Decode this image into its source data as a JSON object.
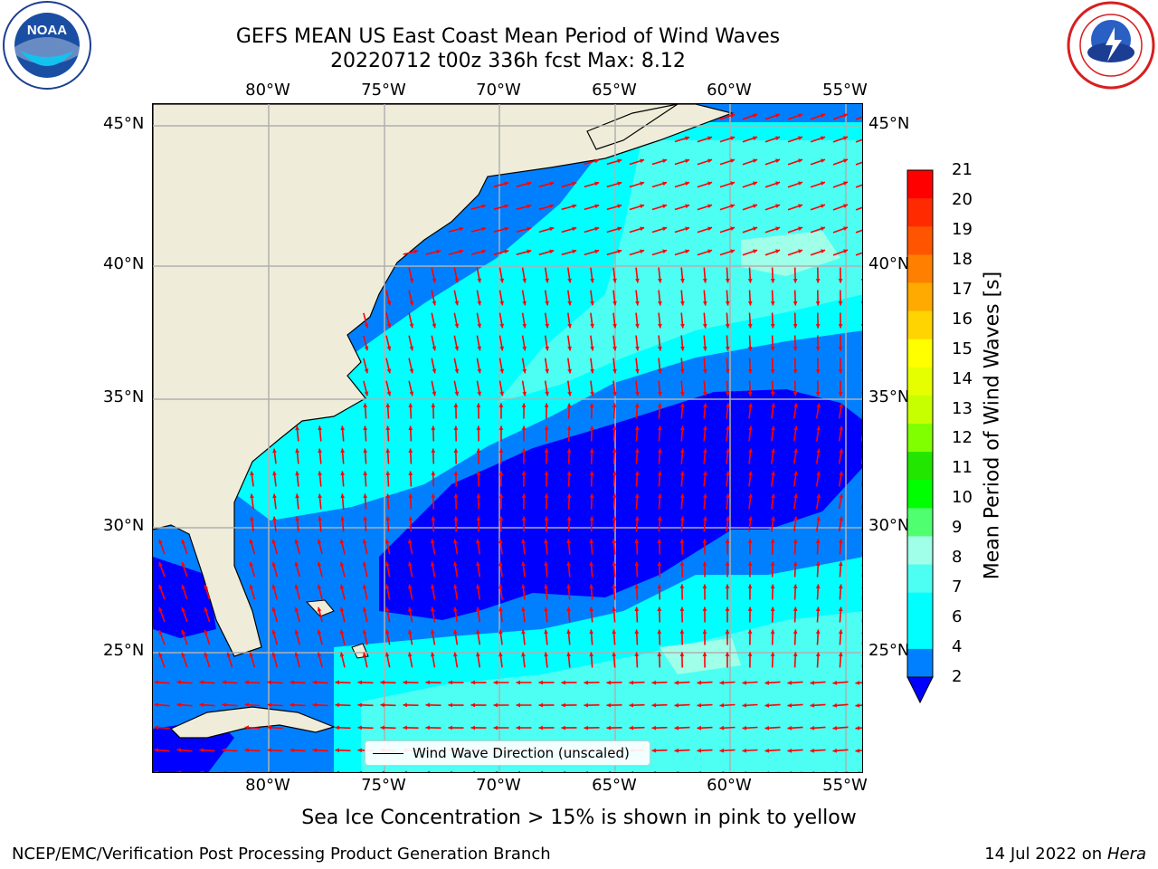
{
  "title": {
    "line1": "GEFS MEAN US East Coast Mean Period of Wind Waves",
    "line2": "20220712 t00z 336h fcst   Max: 8.12"
  },
  "logos": {
    "noaa": {
      "text": "NOAA",
      "icon": "noaa-logo-icon"
    },
    "nws": {
      "icon": "nws-logo-icon"
    }
  },
  "map": {
    "projection": "equirectangular",
    "lon_range": [
      -85,
      -54.1
    ],
    "lat_range": [
      20.5,
      46
    ],
    "lon_ticks": [
      "80°W",
      "75°W",
      "70°W",
      "65°W",
      "60°W",
      "55°W"
    ],
    "lat_ticks": [
      "45°N",
      "40°N",
      "35°N",
      "30°N",
      "25°N"
    ],
    "grid": true,
    "colors": {
      "land": "#efedd9",
      "grid": "#b0b0b0",
      "arrow": "#ff0000"
    },
    "legend_entry": "Wind Wave Direction (unscaled)"
  },
  "colorbar": {
    "label": "Mean Period of Wind Waves [s]",
    "ticks": [
      "21",
      "20",
      "19",
      "18",
      "17",
      "16",
      "15",
      "14",
      "13",
      "12",
      "11",
      "10",
      "9",
      "8",
      "7",
      "6",
      "4",
      "2"
    ],
    "colors_top_to_bottom": [
      "#ff0000",
      "#ff2a00",
      "#ff5500",
      "#ff7f00",
      "#ffaa00",
      "#ffd400",
      "#ffff00",
      "#e5ff00",
      "#c8ff00",
      "#80ff00",
      "#22e600",
      "#00ff00",
      "#50ff70",
      "#a0ffe8",
      "#4dfff2",
      "#00ffff",
      "#00ffff",
      "#0080ff"
    ],
    "under_color": "#0000ff"
  },
  "caption": "Sea Ice Concentration > 15% is shown in pink to yellow",
  "footer": {
    "left": "NCEP/EMC/Verification Post Processing Product Generation Branch",
    "right_prefix": "14 Jul 2022 on ",
    "right_italic": "Hera"
  }
}
